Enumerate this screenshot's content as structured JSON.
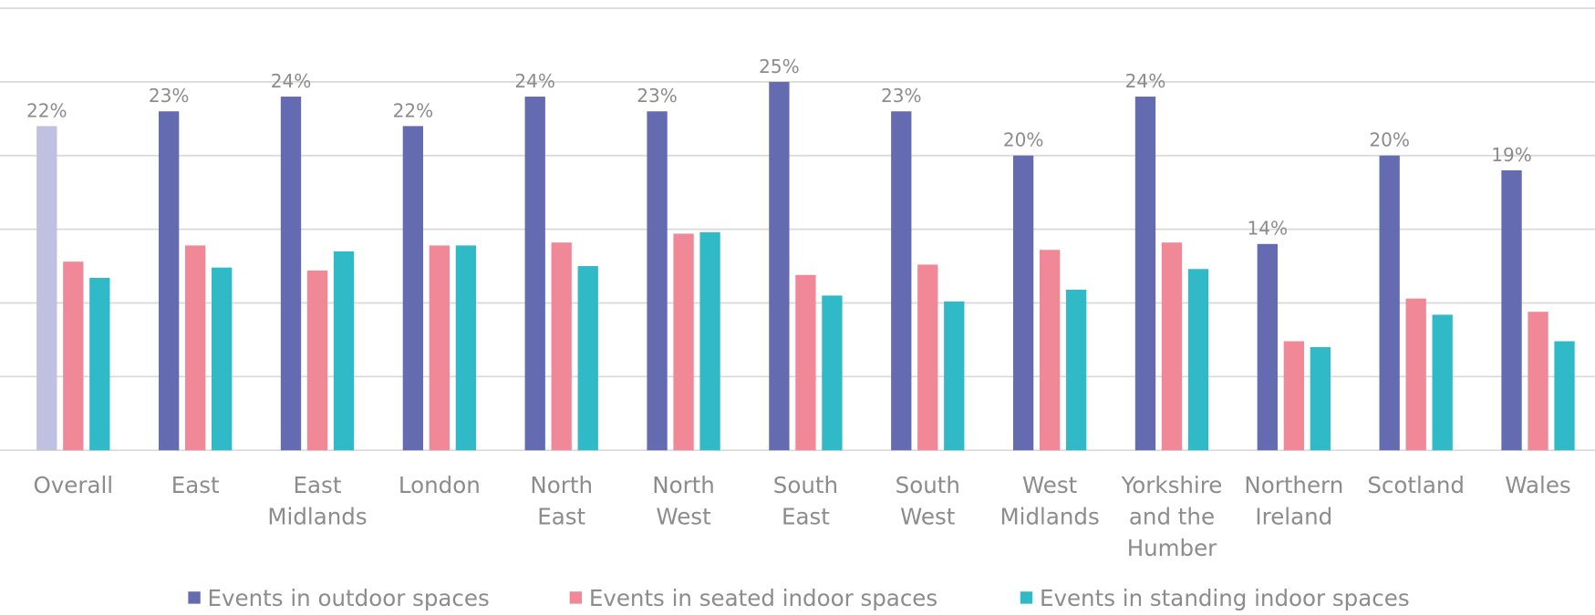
{
  "chart_data": {
    "type": "bar",
    "categories": [
      "Overall",
      "East",
      "East Midlands",
      "London",
      "North East",
      "North West",
      "South East",
      "South West",
      "West Midlands",
      "Yorkshire and the Humber",
      "Northern Ireland",
      "Scotland",
      "Wales"
    ],
    "series": [
      {
        "name": "Events in outdoor spaces",
        "color": "#656bb1",
        "point_colors": [
          "#c0c0e0",
          "#656bb1",
          "#656bb1",
          "#656bb1",
          "#656bb1",
          "#656bb1",
          "#656bb1",
          "#656bb1",
          "#656bb1",
          "#656bb1",
          "#656bb1",
          "#656bb1",
          "#656bb1"
        ],
        "values": [
          22,
          23,
          24,
          22,
          24,
          23,
          25,
          23,
          20,
          24,
          14,
          20,
          19
        ],
        "value_labels": [
          "22%",
          "23%",
          "24%",
          "22%",
          "24%",
          "23%",
          "25%",
          "23%",
          "20%",
          "24%",
          "14%",
          "20%",
          "19%"
        ]
      },
      {
        "name": "Events in seated indoor spaces",
        "color": "#f08898",
        "values": [
          12.8,
          13.9,
          12.2,
          13.9,
          14.1,
          14.7,
          11.9,
          12.6,
          13.6,
          14.1,
          7.4,
          10.3,
          9.4
        ]
      },
      {
        "name": "Events in standing indoor spaces",
        "color": "#30b9c7",
        "values": [
          11.7,
          12.4,
          13.5,
          13.9,
          12.5,
          14.8,
          10.5,
          10.1,
          10.9,
          12.3,
          7.0,
          9.2,
          7.4
        ]
      }
    ],
    "ylim": [
      0,
      30
    ],
    "yticks": [
      0,
      5,
      10,
      15,
      20,
      25,
      30
    ],
    "grid": true
  }
}
